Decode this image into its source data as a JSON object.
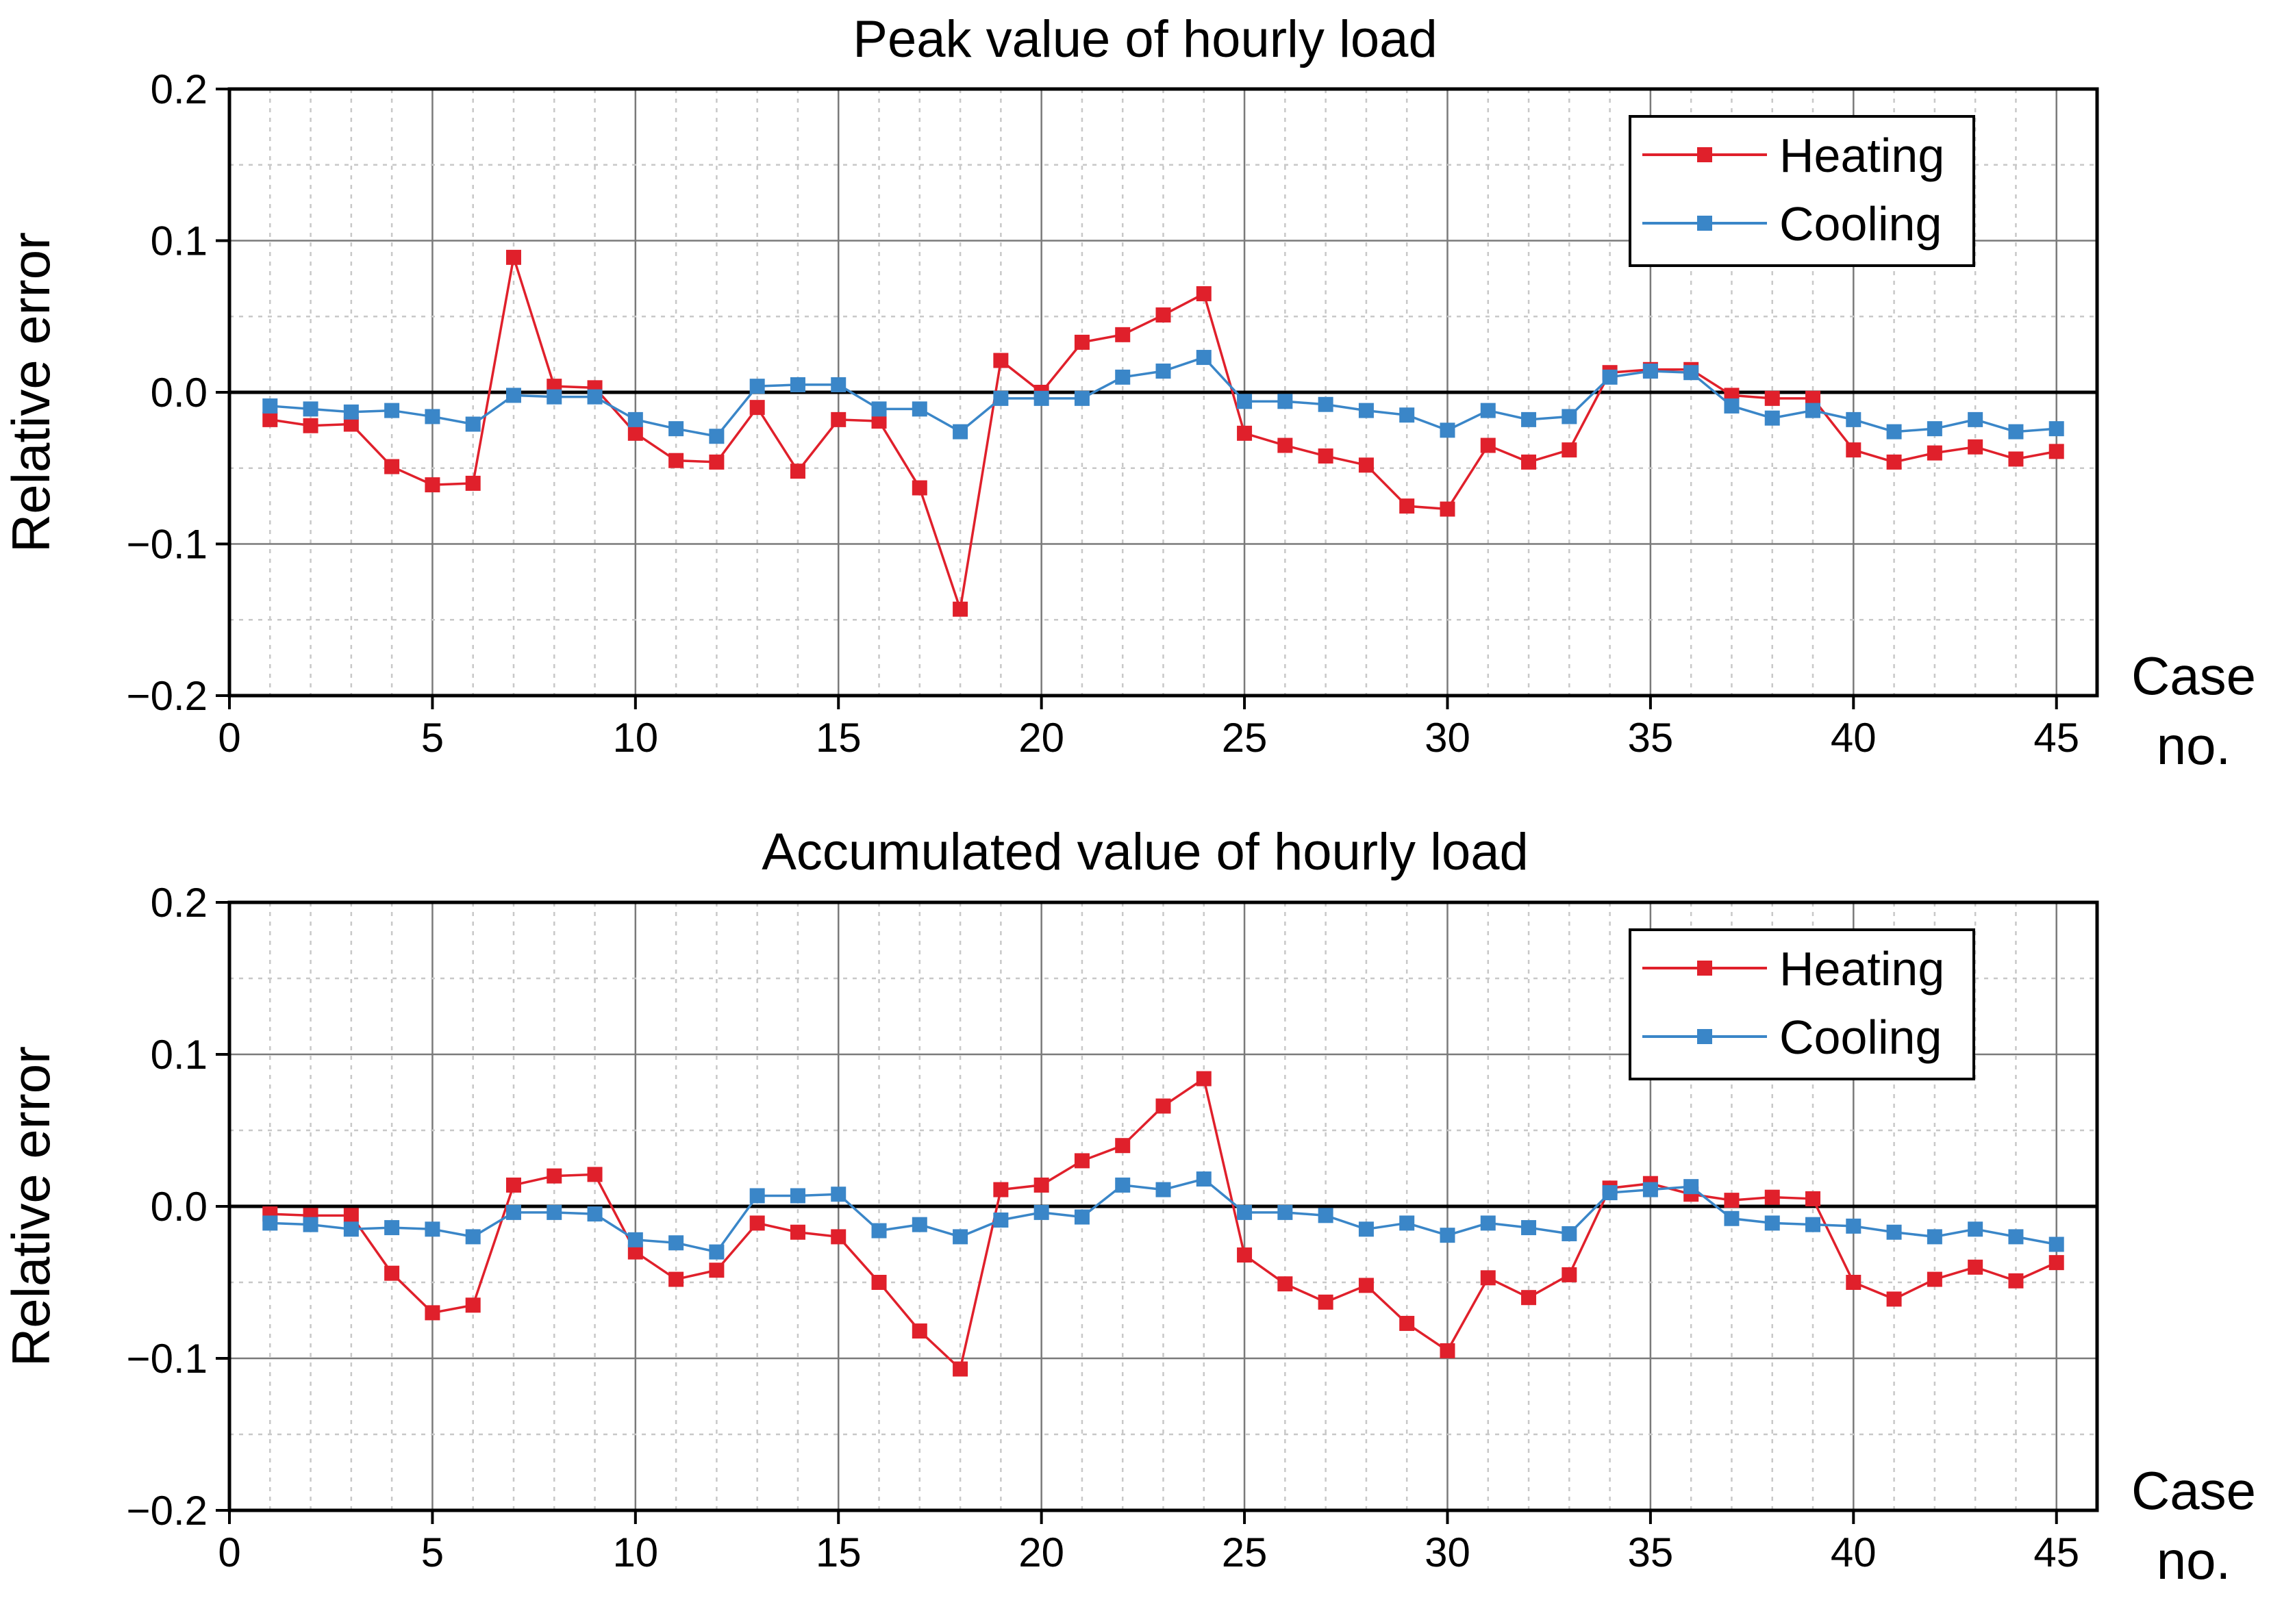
{
  "colors": {
    "heating": "#e0202b",
    "cooling": "#3a86c8",
    "grid_major": "#7a7a7a",
    "grid_minor": "#c8c8c8",
    "axis": "#000000",
    "zero_line": "#000000"
  },
  "chart_data": [
    {
      "type": "line",
      "title": "Peak value of hourly load",
      "ylabel": "Relative error",
      "xlabel": [
        "Case",
        "no."
      ],
      "xlim": [
        0,
        46
      ],
      "ylim": [
        -0.2,
        0.2
      ],
      "x_ticks": [
        0,
        5,
        10,
        15,
        20,
        25,
        30,
        35,
        40,
        45
      ],
      "x_tick_labels": [
        "0",
        "5",
        "10",
        "15",
        "20",
        "25",
        "30",
        "35",
        "40",
        "45"
      ],
      "y_ticks": [
        -0.2,
        -0.1,
        0.0,
        0.1,
        0.2
      ],
      "y_tick_labels": [
        "−0.2",
        "−0.1",
        "0.0",
        "0.1",
        "0.2"
      ],
      "legend_position": "top-right",
      "x": [
        1,
        2,
        3,
        4,
        5,
        6,
        7,
        8,
        9,
        10,
        11,
        12,
        13,
        14,
        15,
        16,
        17,
        18,
        19,
        20,
        21,
        22,
        23,
        24,
        25,
        26,
        27,
        28,
        29,
        30,
        31,
        32,
        33,
        34,
        35,
        36,
        37,
        38,
        39,
        40,
        41,
        42,
        43,
        44,
        45
      ],
      "series": [
        {
          "name": "Heating",
          "color": "#e0202b",
          "values": [
            -0.018,
            -0.022,
            -0.021,
            -0.049,
            -0.061,
            -0.06,
            0.089,
            0.004,
            0.003,
            -0.027,
            -0.045,
            -0.046,
            -0.01,
            -0.052,
            -0.018,
            -0.019,
            -0.063,
            -0.143,
            0.021,
            0.0,
            0.033,
            0.038,
            0.051,
            0.065,
            -0.027,
            -0.035,
            -0.042,
            -0.048,
            -0.075,
            -0.077,
            -0.035,
            -0.046,
            -0.038,
            0.013,
            0.015,
            0.015,
            -0.002,
            -0.004,
            -0.004,
            -0.038,
            -0.046,
            -0.04,
            -0.036,
            -0.044,
            -0.039
          ]
        },
        {
          "name": "Cooling",
          "color": "#3a86c8",
          "values": [
            -0.009,
            -0.011,
            -0.013,
            -0.012,
            -0.016,
            -0.021,
            -0.002,
            -0.003,
            -0.003,
            -0.018,
            -0.024,
            -0.029,
            0.004,
            0.005,
            0.005,
            -0.011,
            -0.011,
            -0.026,
            -0.004,
            -0.004,
            -0.004,
            0.01,
            0.014,
            0.023,
            -0.006,
            -0.006,
            -0.008,
            -0.012,
            -0.015,
            -0.025,
            -0.012,
            -0.018,
            -0.016,
            0.01,
            0.014,
            0.013,
            -0.009,
            -0.017,
            -0.012,
            -0.018,
            -0.026,
            -0.024,
            -0.018,
            -0.026,
            -0.024
          ]
        }
      ]
    },
    {
      "type": "line",
      "title": "Accumulated value of hourly load",
      "ylabel": "Relative error",
      "xlabel": [
        "Case",
        "no."
      ],
      "xlim": [
        0,
        46
      ],
      "ylim": [
        -0.2,
        0.2
      ],
      "x_ticks": [
        0,
        5,
        10,
        15,
        20,
        25,
        30,
        35,
        40,
        45
      ],
      "x_tick_labels": [
        "0",
        "5",
        "10",
        "15",
        "20",
        "25",
        "30",
        "35",
        "40",
        "45"
      ],
      "y_ticks": [
        -0.2,
        -0.1,
        0.0,
        0.1,
        0.2
      ],
      "y_tick_labels": [
        "−0.2",
        "−0.1",
        "0.0",
        "0.1",
        "0.2"
      ],
      "legend_position": "top-right",
      "x": [
        1,
        2,
        3,
        4,
        5,
        6,
        7,
        8,
        9,
        10,
        11,
        12,
        13,
        14,
        15,
        16,
        17,
        18,
        19,
        20,
        21,
        22,
        23,
        24,
        25,
        26,
        27,
        28,
        29,
        30,
        31,
        32,
        33,
        34,
        35,
        36,
        37,
        38,
        39,
        40,
        41,
        42,
        43,
        44,
        45
      ],
      "series": [
        {
          "name": "Heating",
          "color": "#e0202b",
          "values": [
            -0.005,
            -0.006,
            -0.006,
            -0.044,
            -0.07,
            -0.065,
            0.014,
            0.02,
            0.021,
            -0.03,
            -0.048,
            -0.042,
            -0.011,
            -0.017,
            -0.02,
            -0.05,
            -0.082,
            -0.107,
            0.011,
            0.014,
            0.03,
            0.04,
            0.066,
            0.084,
            -0.032,
            -0.051,
            -0.063,
            -0.052,
            -0.077,
            -0.095,
            -0.047,
            -0.06,
            -0.045,
            0.012,
            0.015,
            0.008,
            0.004,
            0.006,
            0.005,
            -0.05,
            -0.061,
            -0.048,
            -0.04,
            -0.049,
            -0.037
          ]
        },
        {
          "name": "Cooling",
          "color": "#3a86c8",
          "values": [
            -0.011,
            -0.012,
            -0.015,
            -0.014,
            -0.015,
            -0.02,
            -0.004,
            -0.004,
            -0.005,
            -0.022,
            -0.024,
            -0.03,
            0.007,
            0.007,
            0.008,
            -0.016,
            -0.012,
            -0.02,
            -0.009,
            -0.004,
            -0.007,
            0.014,
            0.011,
            0.018,
            -0.004,
            -0.004,
            -0.006,
            -0.015,
            -0.011,
            -0.019,
            -0.011,
            -0.014,
            -0.018,
            0.009,
            0.011,
            0.013,
            -0.008,
            -0.011,
            -0.012,
            -0.013,
            -0.017,
            -0.02,
            -0.015,
            -0.02,
            -0.025
          ]
        }
      ]
    }
  ]
}
